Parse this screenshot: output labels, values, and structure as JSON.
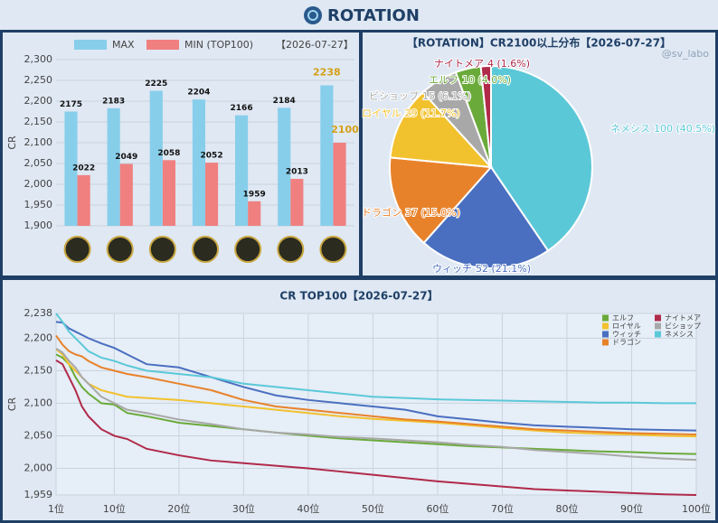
{
  "header": {
    "title": "ROTATION"
  },
  "chart_data": [
    {
      "type": "bar",
      "annotation": "【2026-07-27】",
      "ylabel": "CR",
      "categories": [
        null,
        null,
        null,
        null,
        null,
        null,
        null
      ],
      "series": [
        {
          "name": "MAX",
          "color": "#87ceeb",
          "values": [
            2175,
            2183,
            2225,
            2204,
            2166,
            2184,
            2238
          ]
        },
        {
          "name": "MIN (TOP100)",
          "color": "#f08080",
          "values": [
            2022,
            2049,
            2058,
            2052,
            1959,
            2013,
            2100
          ]
        }
      ],
      "ylim": [
        1900,
        2300
      ],
      "yticks": [
        {
          "value": 1900,
          "label": "1,900"
        },
        {
          "value": 1950,
          "label": "1,950"
        },
        {
          "value": 2000,
          "label": "2,000"
        },
        {
          "value": 2050,
          "label": "2,050"
        },
        {
          "value": 2100,
          "label": "2,100"
        },
        {
          "value": 2150,
          "label": "2,150"
        },
        {
          "value": 2200,
          "label": "2,200"
        },
        {
          "value": 2250,
          "label": "2,250"
        },
        {
          "value": 2300,
          "label": "2,300"
        }
      ],
      "grid": true
    },
    {
      "type": "pie",
      "title": "【ROTATION】CR2100以上分布【2026-07-27】",
      "watermark": "@sv_labo",
      "categories": [
        "ネメシス",
        "ウィッチ",
        "ドラゴン",
        "ロイヤル",
        "ビショップ",
        "エルフ",
        "ナイトメア"
      ],
      "values": [
        100,
        52,
        37,
        29,
        15,
        10,
        4
      ],
      "value_labels": [
        "100 (40.5%)",
        "52 (21.1%)",
        "37 (15.0%)",
        "29 (11.7%)",
        "15 (6.1%)",
        "10 (4.0%)",
        "4 (1.6%)"
      ],
      "colors": [
        "#5bc8d8",
        "#4a6fc0",
        "#e8822a",
        "#f2c12e",
        "#a8a8a8",
        "#6aaa3a",
        "#b02a4a"
      ]
    },
    {
      "type": "line",
      "title": "CR TOP100【2026-07-27】",
      "ylabel": "CR",
      "x": [
        1,
        2,
        3,
        4,
        5,
        6,
        8,
        10,
        12,
        15,
        20,
        25,
        30,
        35,
        40,
        45,
        50,
        55,
        60,
        65,
        70,
        75,
        80,
        85,
        90,
        95,
        100
      ],
      "series": [
        {
          "name": "エルフ",
          "color": "#6aaa3a",
          "values": [
            2175,
            2170,
            2160,
            2140,
            2125,
            2115,
            2100,
            2098,
            2085,
            2080,
            2070,
            2065,
            2060,
            2055,
            2050,
            2046,
            2043,
            2040,
            2037,
            2034,
            2032,
            2030,
            2028,
            2026,
            2025,
            2023,
            2022
          ]
        },
        {
          "name": "ロイヤル",
          "color": "#f2c12e",
          "values": [
            2183,
            2175,
            2160,
            2150,
            2140,
            2130,
            2120,
            2115,
            2110,
            2108,
            2105,
            2100,
            2095,
            2090,
            2085,
            2080,
            2076,
            2073,
            2070,
            2066,
            2062,
            2058,
            2055,
            2053,
            2052,
            2050,
            2049
          ]
        },
        {
          "name": "ウィッチ",
          "color": "#4a6fc0",
          "values": [
            2225,
            2224,
            2215,
            2210,
            2205,
            2200,
            2192,
            2185,
            2175,
            2160,
            2155,
            2140,
            2125,
            2112,
            2105,
            2100,
            2095,
            2090,
            2080,
            2075,
            2070,
            2066,
            2064,
            2062,
            2060,
            2059,
            2058
          ]
        },
        {
          "name": "ドラゴン",
          "color": "#e8822a",
          "values": [
            2204,
            2190,
            2180,
            2175,
            2172,
            2165,
            2155,
            2150,
            2145,
            2140,
            2130,
            2120,
            2105,
            2095,
            2090,
            2085,
            2080,
            2075,
            2072,
            2068,
            2064,
            2060,
            2058,
            2056,
            2054,
            2053,
            2052
          ]
        },
        {
          "name": "ナイトメア",
          "color": "#b02a4a",
          "values": [
            2166,
            2160,
            2140,
            2120,
            2095,
            2080,
            2060,
            2050,
            2045,
            2030,
            2020,
            2012,
            2008,
            2004,
            2000,
            1995,
            1990,
            1985,
            1980,
            1976,
            1972,
            1968,
            1966,
            1964,
            1962,
            1960,
            1959
          ]
        },
        {
          "name": "ビショップ",
          "color": "#a8a8a8",
          "values": [
            2184,
            2178,
            2165,
            2155,
            2140,
            2130,
            2110,
            2100,
            2090,
            2085,
            2075,
            2068,
            2060,
            2055,
            2052,
            2048,
            2046,
            2043,
            2040,
            2036,
            2033,
            2028,
            2025,
            2022,
            2018,
            2015,
            2013
          ]
        },
        {
          "name": "ネメシス",
          "color": "#5bc8d8",
          "values": [
            2238,
            2225,
            2210,
            2200,
            2190,
            2180,
            2170,
            2165,
            2158,
            2150,
            2145,
            2140,
            2130,
            2125,
            2120,
            2115,
            2110,
            2108,
            2106,
            2105,
            2104,
            2103,
            2102,
            2101,
            2101,
            2100,
            2100
          ]
        }
      ],
      "xlim": [
        1,
        100
      ],
      "xticks": [
        {
          "value": 1,
          "label": "1位"
        },
        {
          "value": 10,
          "label": "10位"
        },
        {
          "value": 20,
          "label": "20位"
        },
        {
          "value": 30,
          "label": "30位"
        },
        {
          "value": 40,
          "label": "40位"
        },
        {
          "value": 50,
          "label": "50位"
        },
        {
          "value": 60,
          "label": "60位"
        },
        {
          "value": 70,
          "label": "70位"
        },
        {
          "value": 80,
          "label": "80位"
        },
        {
          "value": 90,
          "label": "90位"
        },
        {
          "value": 100,
          "label": "100位"
        }
      ],
      "ylim": [
        1959,
        2238
      ],
      "yticks": [
        {
          "value": 1959,
          "label": "1,959"
        },
        {
          "value": 2000,
          "label": "2,000"
        },
        {
          "value": 2050,
          "label": "2,050"
        },
        {
          "value": 2100,
          "label": "2,100"
        },
        {
          "value": 2150,
          "label": "2,150"
        },
        {
          "value": 2200,
          "label": "2,200"
        },
        {
          "value": 2238,
          "label": "2,238"
        }
      ],
      "grid": true
    }
  ]
}
